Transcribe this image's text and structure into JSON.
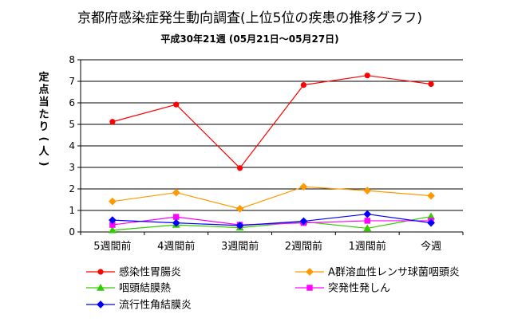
{
  "chart_data": {
    "type": "line",
    "title": "京都府感染症発生動向調査(上位5位の疾患の推移グラフ)",
    "subtitle": "平成30年21週 (05月21日～05月27日)",
    "ylabel": "定点当たり(人)",
    "xlabel": "",
    "ylim": [
      0,
      8
    ],
    "yticks": [
      0,
      1,
      2,
      3,
      4,
      5,
      6,
      7,
      8
    ],
    "grid": true,
    "legend_position": "bottom",
    "categories": [
      "5週間前",
      "4週間前",
      "3週間前",
      "2週間前",
      "1週間前",
      "今週"
    ],
    "series": [
      {
        "name": "感染性胃腸炎",
        "color": "#ff0000",
        "marker": "circle",
        "values": [
          5.12,
          5.92,
          2.97,
          6.83,
          7.27,
          6.87
        ]
      },
      {
        "name": "A群溶血性レンサ球菌咽頭炎",
        "color": "#ff9900",
        "marker": "diamond",
        "values": [
          1.42,
          1.83,
          1.08,
          2.1,
          1.92,
          1.68
        ]
      },
      {
        "name": "咽頭結膜熱",
        "color": "#33cc00",
        "marker": "triangle",
        "values": [
          0.08,
          0.33,
          0.2,
          0.48,
          0.17,
          0.72
        ]
      },
      {
        "name": "突発性発しん",
        "color": "#ff00ff",
        "marker": "square",
        "values": [
          0.33,
          0.7,
          0.33,
          0.42,
          0.52,
          0.52
        ]
      },
      {
        "name": "流行性角結膜炎",
        "color": "#0000ff",
        "marker": "diamond",
        "values": [
          0.55,
          0.42,
          0.3,
          0.5,
          0.83,
          0.42
        ]
      }
    ]
  }
}
